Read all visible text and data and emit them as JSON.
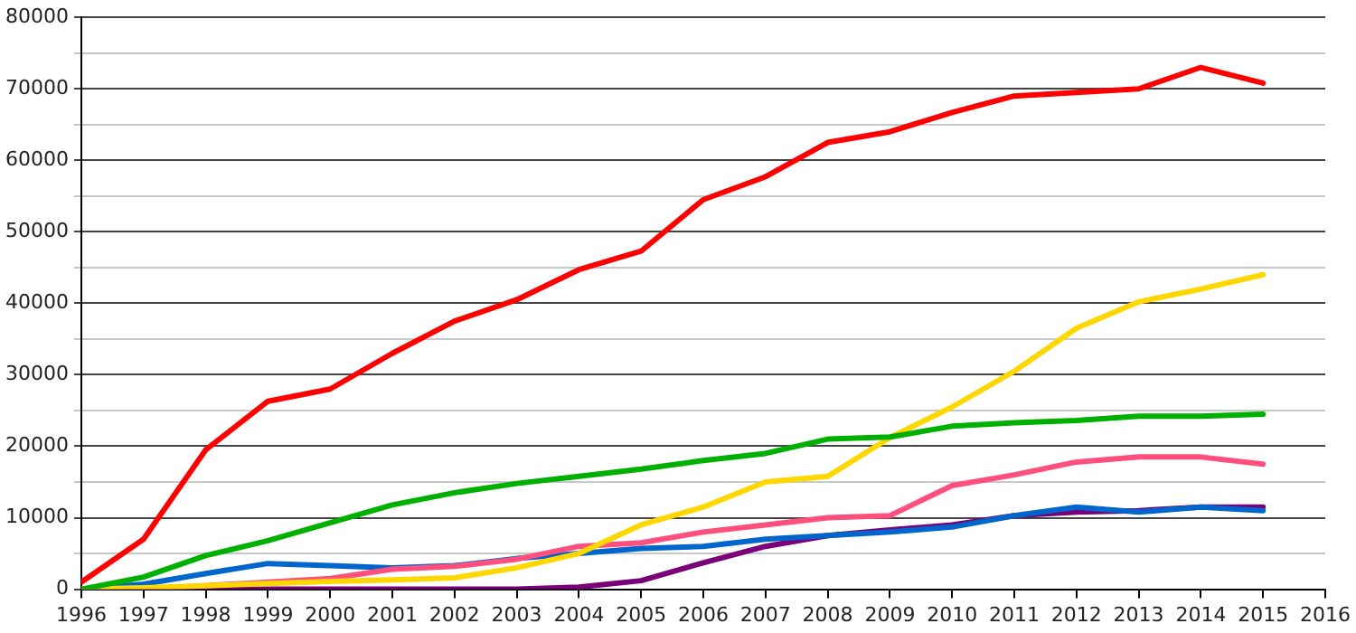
{
  "chart_data": {
    "type": "line",
    "x": [
      1996,
      1997,
      1998,
      1999,
      2000,
      2001,
      2002,
      2003,
      2004,
      2005,
      2006,
      2007,
      2008,
      2009,
      2010,
      2011,
      2012,
      2013,
      2014,
      2015
    ],
    "series": [
      {
        "color": "#00b000",
        "values": [
          0,
          1700,
          4700,
          6800,
          9300,
          11800,
          13500,
          14800,
          15800,
          16800,
          18000,
          19000,
          21000,
          21300,
          22800,
          23300,
          23600,
          24200,
          24200,
          24500
        ]
      },
      {
        "color": "#ffd700",
        "values": [
          0,
          200,
          500,
          800,
          1100,
          1300,
          1600,
          3000,
          5000,
          9000,
          11500,
          15000,
          15800,
          21200,
          25500,
          30500,
          36500,
          40200,
          42000,
          44000
        ]
      },
      {
        "color": "#ff4f7f",
        "values": [
          0,
          0,
          500,
          1000,
          1500,
          2800,
          3200,
          4200,
          6000,
          6500,
          8000,
          9000,
          10000,
          10300,
          14500,
          16000,
          17800,
          18500,
          18500,
          17500
        ]
      },
      {
        "color": "#0066cc",
        "values": [
          0,
          700,
          2200,
          3600,
          3300,
          3000,
          3300,
          4300,
          5000,
          5700,
          6000,
          7000,
          7500,
          8000,
          8700,
          10300,
          11500,
          10800,
          11500,
          11000
        ]
      },
      {
        "color": "#7a007a",
        "values": [
          0,
          0,
          0,
          0,
          0,
          0,
          0,
          0,
          300,
          1200,
          3700,
          6000,
          7500,
          8300,
          9000,
          10300,
          10800,
          11000,
          11500,
          11500
        ]
      },
      {
        "color": "#ff0000",
        "values": [
          1000,
          7000,
          19500,
          26300,
          28000,
          33000,
          37500,
          40500,
          44700,
          47300,
          54500,
          57700,
          62500,
          64000,
          66700,
          69000,
          69500,
          70000,
          73000,
          70800
        ]
      }
    ],
    "xlim": [
      1996,
      2016
    ],
    "xticks": [
      1996,
      1997,
      1998,
      1999,
      2000,
      2001,
      2002,
      2003,
      2004,
      2005,
      2006,
      2007,
      2008,
      2009,
      2010,
      2011,
      2012,
      2013,
      2014,
      2015,
      2016
    ],
    "ylim": [
      0,
      80000
    ],
    "yticks": [
      0,
      {
        "value": 5000,
        "label": null
      },
      10000,
      {
        "value": 15000,
        "label": null
      },
      20000,
      {
        "value": 25000,
        "label": null
      },
      30000,
      {
        "value": 35000,
        "label": null
      },
      40000,
      {
        "value": 45000,
        "label": null
      },
      50000,
      {
        "value": 55000,
        "label": null
      },
      60000,
      {
        "value": 65000,
        "label": null
      },
      70000,
      {
        "value": 75000,
        "label": null
      },
      80000
    ],
    "grid": "y",
    "legend": false,
    "marker": "none",
    "line_style": "solid"
  }
}
